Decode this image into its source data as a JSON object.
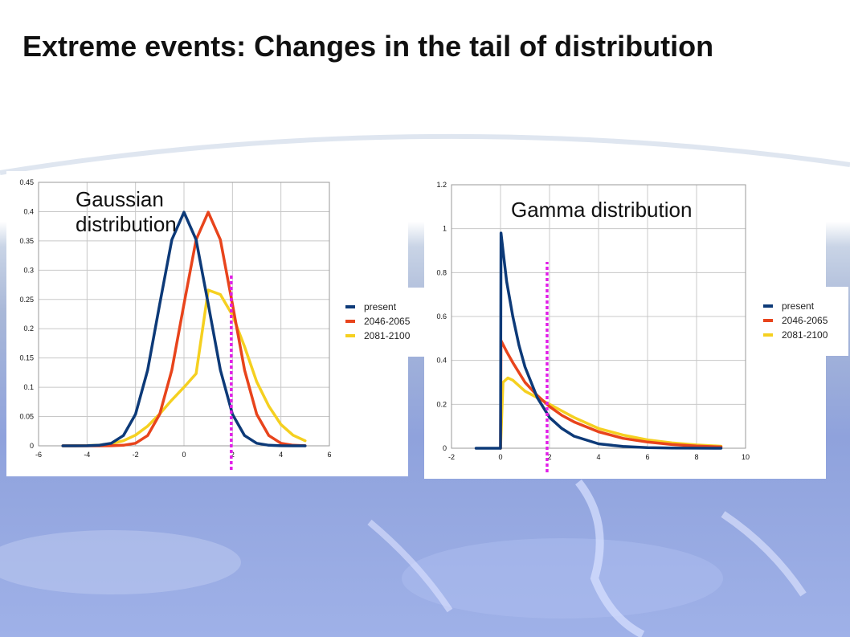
{
  "title": "Extreme events:  Changes in the tail of distribution",
  "colors": {
    "present": "#0d3a78",
    "mid": "#e8441c",
    "late": "#f5d020",
    "threshold": "#e21ee8",
    "grid": "#c8c8c8"
  },
  "legend": [
    "present",
    "2046-2065",
    "2081-2100"
  ],
  "chart_data": [
    {
      "type": "line",
      "label": [
        "Gaussian",
        "distribution"
      ],
      "xlim": [
        -6,
        6
      ],
      "ylim": [
        0,
        0.45
      ],
      "xticks": [
        "-6",
        "-4",
        "-2",
        "0",
        "2",
        "4",
        "6"
      ],
      "yticks": [
        "0",
        "0.05",
        "0.1",
        "0.15",
        "0.2",
        "0.25",
        "0.3",
        "0.35",
        "0.4",
        "0.45"
      ],
      "grid": true,
      "legend_position": "right",
      "threshold_x": 1.95,
      "series": [
        {
          "name": "present",
          "x": [
            -5,
            -4.5,
            -4,
            -3.5,
            -3,
            -2.5,
            -2,
            -1.5,
            -1,
            -0.5,
            0,
            0.5,
            1,
            1.5,
            2,
            2.5,
            3,
            3.5,
            4,
            4.5,
            5
          ],
          "y": [
            0.0,
            0.0,
            0.0001,
            0.0009,
            0.0044,
            0.0175,
            0.054,
            0.1295,
            0.242,
            0.352,
            0.399,
            0.352,
            0.242,
            0.1295,
            0.054,
            0.0175,
            0.0044,
            0.0009,
            0.0001,
            0.0,
            0.0
          ]
        },
        {
          "name": "2046-2065",
          "x": [
            -5,
            -4.5,
            -4,
            -3.5,
            -3,
            -2.5,
            -2,
            -1.5,
            -1,
            -0.5,
            0,
            0.5,
            1,
            1.5,
            2,
            2.5,
            3,
            3.5,
            4,
            4.5,
            5
          ],
          "y": [
            0.0,
            0.0,
            0.0,
            0.0,
            0.0001,
            0.0009,
            0.0044,
            0.0175,
            0.054,
            0.1295,
            0.242,
            0.352,
            0.399,
            0.352,
            0.242,
            0.1295,
            0.054,
            0.0175,
            0.0044,
            0.0009,
            0.0001
          ]
        },
        {
          "name": "2081-2100",
          "x": [
            -5,
            -4.5,
            -4,
            -3.5,
            -3,
            -2.5,
            -2,
            -1.5,
            -1,
            -0.5,
            0,
            0.5,
            1,
            1.5,
            2,
            2.5,
            3,
            3.5,
            4,
            4.5,
            5
          ],
          "y": [
            0.0,
            0.0001,
            0.0004,
            0.0013,
            0.0036,
            0.0087,
            0.0182,
            0.0336,
            0.0546,
            0.0784,
            0.1,
            0.1233,
            0.266,
            0.2585,
            0.2232,
            0.1695,
            0.1095,
            0.0678,
            0.0364,
            0.0181,
            0.0087
          ]
        }
      ]
    },
    {
      "type": "line",
      "label": [
        "Gamma distribution"
      ],
      "xlim": [
        -2,
        10
      ],
      "ylim": [
        0,
        1.2
      ],
      "xticks": [
        "-2",
        "0",
        "2",
        "4",
        "6",
        "8",
        "10"
      ],
      "yticks": [
        "0",
        "0.2",
        "0.4",
        "0.6",
        "0.8",
        "1",
        "1.2"
      ],
      "grid": true,
      "legend_position": "right",
      "threshold_x": 1.9,
      "series": [
        {
          "name": "present",
          "x": [
            -1,
            0,
            0.02,
            0.1,
            0.25,
            0.5,
            0.75,
            1,
            1.5,
            2,
            2.5,
            3,
            4,
            5,
            6,
            7,
            8,
            9
          ],
          "y": [
            0,
            0,
            0.98,
            0.9,
            0.76,
            0.6,
            0.47,
            0.37,
            0.23,
            0.14,
            0.09,
            0.055,
            0.02,
            0.008,
            0.003,
            0.001,
            0.0005,
            0.0
          ]
        },
        {
          "name": "2046-2065",
          "x": [
            0,
            0.02,
            0.25,
            0.5,
            1,
            1.5,
            2,
            2.5,
            3,
            4,
            5,
            6,
            7,
            8,
            9
          ],
          "y": [
            0,
            0.49,
            0.44,
            0.39,
            0.3,
            0.24,
            0.19,
            0.15,
            0.12,
            0.075,
            0.045,
            0.028,
            0.017,
            0.01,
            0.006
          ]
        },
        {
          "name": "2081-2100",
          "x": [
            0,
            0.1,
            0.3,
            0.5,
            0.8,
            1,
            1.5,
            2,
            2.5,
            3,
            4,
            5,
            6,
            7,
            8,
            9
          ],
          "y": [
            0,
            0.3,
            0.32,
            0.31,
            0.28,
            0.26,
            0.23,
            0.2,
            0.17,
            0.14,
            0.09,
            0.06,
            0.038,
            0.024,
            0.015,
            0.009
          ]
        }
      ]
    }
  ]
}
